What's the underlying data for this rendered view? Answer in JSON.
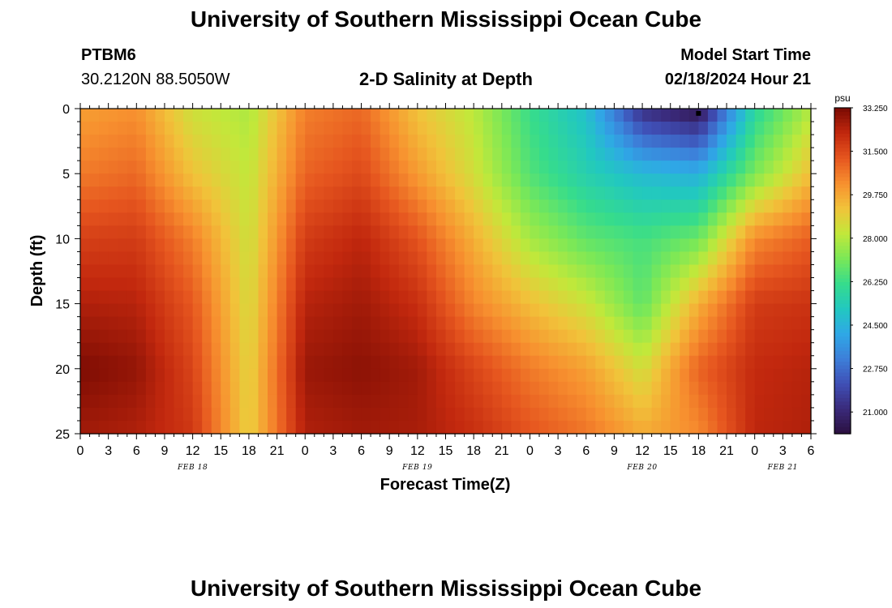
{
  "page": {
    "title": "University of Southern Mississippi Ocean Cube",
    "bottom_title": "University of Southern Mississippi Ocean Cube",
    "station_id": "PTBM6",
    "coords": "30.2120N  88.5050W",
    "chart_title": "2-D Salinity at Depth",
    "model_start_label": "Model Start Time",
    "model_start_value": "02/18/2024 Hour 21"
  },
  "chart_data": {
    "type": "heatmap",
    "title": "2-D Salinity at Depth",
    "xlabel": "Forecast Time(Z)",
    "ylabel": "Depth (ft)",
    "x_unit": "hours since FEB 18 00Z",
    "xlim": [
      0,
      78
    ],
    "ylim": [
      0,
      25
    ],
    "y_inverted": true,
    "x_ticks": [
      0,
      3,
      6,
      9,
      12,
      15,
      18,
      21,
      24,
      27,
      30,
      33,
      36,
      39,
      42,
      45,
      48,
      51,
      54,
      57,
      60,
      63,
      66,
      69,
      72,
      75,
      78
    ],
    "x_tick_labels": [
      "0",
      "3",
      "6",
      "9",
      "12",
      "15",
      "18",
      "21",
      "0",
      "3",
      "6",
      "9",
      "12",
      "15",
      "18",
      "21",
      "0",
      "3",
      "6",
      "9",
      "12",
      "15",
      "18",
      "21",
      "0",
      "3",
      "6"
    ],
    "y_ticks": [
      0,
      5,
      10,
      15,
      20,
      25
    ],
    "y_tick_labels": [
      "0",
      "5",
      "10",
      "15",
      "20",
      "25"
    ],
    "date_labels": [
      {
        "text": "FEB 18",
        "hour": 12
      },
      {
        "text": "FEB 19",
        "hour": 36
      },
      {
        "text": "FEB 20",
        "hour": 60
      },
      {
        "text": "FEB 21",
        "hour": 75
      }
    ],
    "colorbar": {
      "unit": "psu",
      "min": 20.125,
      "max": 33.25,
      "tick_values": [
        33.25,
        31.5,
        29.75,
        28.0,
        26.25,
        24.5,
        22.75,
        21.0
      ],
      "tick_labels": [
        "33.250",
        "31.500",
        "29.750",
        "28.000",
        "26.250",
        "24.500",
        "22.750",
        "21.000"
      ],
      "colors": [
        "#2b0f3f",
        "#3a2a7a",
        "#3f4fb5",
        "#3d7fd9",
        "#2fa8e6",
        "#22c8c0",
        "#36dc8c",
        "#7be857",
        "#c2e83a",
        "#f1c33a",
        "#f7902f",
        "#e6561f",
        "#c2280e",
        "#7a0b03"
      ]
    },
    "grid": {
      "hours": [
        0,
        6,
        12,
        18,
        24,
        30,
        36,
        42,
        48,
        54,
        60,
        66,
        72,
        78
      ],
      "depths": [
        0,
        5,
        10,
        15,
        20,
        25
      ],
      "values": [
        [
          29.9,
          30.2,
          28.4,
          27.9,
          30.5,
          30.9,
          29.2,
          28.1,
          26.2,
          24.9,
          21.2,
          20.3,
          25.8,
          28.0
        ],
        [
          30.6,
          30.9,
          29.2,
          28.2,
          31.0,
          31.5,
          30.0,
          28.5,
          26.6,
          25.5,
          24.7,
          24.4,
          27.2,
          29.3
        ],
        [
          31.7,
          31.8,
          30.5,
          28.4,
          31.8,
          32.3,
          31.3,
          29.6,
          27.8,
          26.8,
          26.4,
          27.0,
          30.3,
          31.1
        ],
        [
          32.5,
          32.4,
          31.2,
          28.6,
          32.4,
          32.7,
          32.1,
          30.4,
          29.3,
          28.4,
          26.8,
          29.6,
          31.8,
          32.0
        ],
        [
          33.2,
          32.9,
          31.6,
          28.8,
          32.8,
          33.0,
          32.7,
          31.6,
          30.6,
          29.9,
          28.5,
          31.0,
          32.2,
          32.4
        ],
        [
          32.7,
          32.5,
          31.9,
          28.9,
          32.5,
          32.7,
          32.6,
          32.1,
          31.3,
          30.7,
          29.7,
          30.3,
          32.3,
          32.5
        ]
      ],
      "marker": {
        "hour": 66,
        "depth": 0.3
      }
    }
  }
}
